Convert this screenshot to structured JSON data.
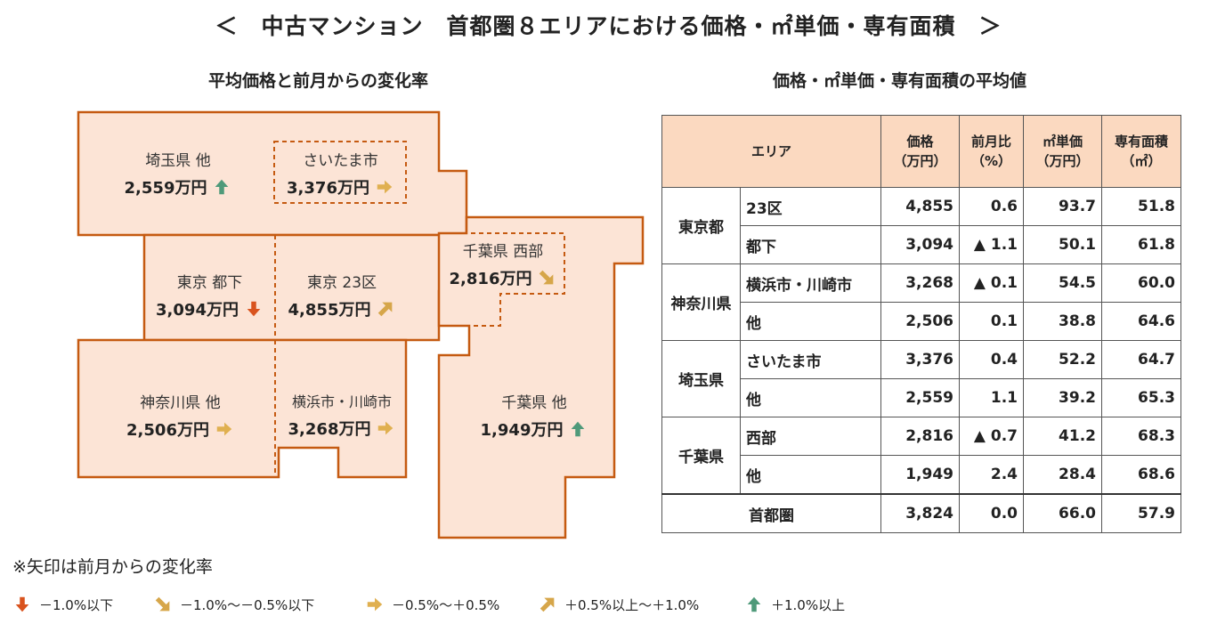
{
  "title": "＜　中古マンション　首都圏８エリアにおける価格・㎡単価・専有面積　＞",
  "left_heading": "平均価格と前月からの変化率",
  "right_heading": "価格・㎡単価・専有面積の平均値",
  "map_regions": [
    {
      "name": "埼玉県 他",
      "price": "2,559万円",
      "arrow": "up"
    },
    {
      "name": "さいたま市",
      "price": "3,376万円",
      "arrow": "flat"
    },
    {
      "name": "東京 都下",
      "price": "3,094万円",
      "arrow": "down"
    },
    {
      "name": "東京 23区",
      "price": "4,855万円",
      "arrow": "slight-up"
    },
    {
      "name": "千葉県 西部",
      "price": "2,816万円",
      "arrow": "slight-down"
    },
    {
      "name": "神奈川県 他",
      "price": "2,506万円",
      "arrow": "flat"
    },
    {
      "name": "横浜市・川崎市",
      "price": "3,268万円",
      "arrow": "flat"
    },
    {
      "name": "千葉県 他",
      "price": "1,949万円",
      "arrow": "up"
    }
  ],
  "table": {
    "headers": {
      "area": "エリア",
      "price": "価格",
      "price_unit": "（万円）",
      "mom": "前月比",
      "mom_unit": "（%）",
      "unit_price": "㎡単価",
      "unit_price_unit": "（万円）",
      "size": "専有面積",
      "size_unit": "（㎡）"
    },
    "groups": [
      {
        "name": "東京都",
        "rows": [
          {
            "sub": "23区",
            "price": "4,855",
            "mom": "0.6",
            "unit": "93.7",
            "size": "51.8"
          },
          {
            "sub": "都下",
            "price": "3,094",
            "mom": "▲ 1.1",
            "unit": "50.1",
            "size": "61.8"
          }
        ]
      },
      {
        "name": "神奈川県",
        "rows": [
          {
            "sub": "横浜市・川崎市",
            "price": "3,268",
            "mom": "▲ 0.1",
            "unit": "54.5",
            "size": "60.0"
          },
          {
            "sub": "他",
            "price": "2,506",
            "mom": "0.1",
            "unit": "38.8",
            "size": "64.6"
          }
        ]
      },
      {
        "name": "埼玉県",
        "rows": [
          {
            "sub": "さいたま市",
            "price": "3,376",
            "mom": "0.4",
            "unit": "52.2",
            "size": "64.7"
          },
          {
            "sub": "他",
            "price": "2,559",
            "mom": "1.1",
            "unit": "39.2",
            "size": "65.3"
          }
        ]
      },
      {
        "name": "千葉県",
        "rows": [
          {
            "sub": "西部",
            "price": "2,816",
            "mom": "▲ 0.7",
            "unit": "41.2",
            "size": "68.3"
          },
          {
            "sub": "他",
            "price": "1,949",
            "mom": "2.4",
            "unit": "28.4",
            "size": "68.6"
          }
        ]
      }
    ],
    "total": {
      "name": "首都圏",
      "price": "3,824",
      "mom": "0.0",
      "unit": "66.0",
      "size": "57.9"
    }
  },
  "legend_note": "※矢印は前月からの変化率",
  "legend": [
    {
      "arrow": "down",
      "label": "－1.0%以下"
    },
    {
      "arrow": "slight-down",
      "label": "－1.0%～－0.5%以下"
    },
    {
      "arrow": "flat",
      "label": "－0.5%～＋0.5%"
    },
    {
      "arrow": "slight-up",
      "label": "＋0.5%以上～＋1.0%"
    },
    {
      "arrow": "up",
      "label": "＋1.0%以上"
    }
  ],
  "colors": {
    "region_fill": "#fce4d6",
    "region_border": "#c55a11",
    "header_fill": "#fbd9c0",
    "arrow_down": "#d9531e",
    "arrow_slight_down": "#d6a64a",
    "arrow_flat": "#e0b050",
    "arrow_slight_up": "#d6a64a",
    "arrow_up": "#4f9a7a"
  }
}
